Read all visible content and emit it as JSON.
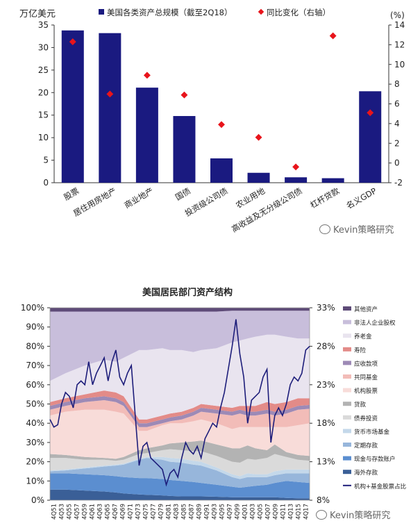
{
  "chart_data": [
    {
      "type": "bar",
      "title": "",
      "ylabel_left": "万亿美元",
      "ylabel_right": "(%)",
      "legend": [
        "美国各类资产总规模（截至2Q18）",
        "同比变化（右轴）"
      ],
      "categories": [
        "股票",
        "居住用房地产",
        "商业地产",
        "国债",
        "投资级公司债",
        "农业用地",
        "高收益及无分级公司债",
        "杠杆贷款",
        "名义GDP"
      ],
      "series": [
        {
          "name": "美国各类资产总规模（截至2Q18）",
          "axis": "left",
          "values": [
            33.8,
            33.2,
            21.1,
            14.8,
            5.4,
            2.2,
            1.2,
            1.0,
            20.3
          ]
        },
        {
          "name": "同比变化（右轴）",
          "axis": "right",
          "values": [
            12.3,
            7.0,
            8.9,
            6.9,
            3.9,
            2.6,
            -0.4,
            12.9,
            5.1
          ]
        }
      ],
      "ylim_left": [
        0,
        35
      ],
      "ylim_right": [
        -2,
        14
      ],
      "yticks_left": [
        "0",
        "5",
        "10",
        "15",
        "20",
        "25",
        "30",
        "35"
      ],
      "yticks_right": [
        "-2",
        "0",
        "2",
        "4",
        "6",
        "8",
        "10",
        "12",
        "14"
      ],
      "colors": {
        "bar": "#1a1a80",
        "marker": "#e8141b"
      }
    },
    {
      "type": "area",
      "title": "美国居民部门资产结构",
      "x_ticks": [
        "4Q51",
        "4Q53",
        "4Q55",
        "4Q57",
        "4Q59",
        "4Q61",
        "4Q63",
        "4Q65",
        "4Q67",
        "4Q69",
        "4Q71",
        "4Q73",
        "4Q75",
        "4Q77",
        "4Q79",
        "4Q81",
        "4Q83",
        "4Q85",
        "4Q87",
        "4Q89",
        "4Q91",
        "4Q93",
        "4Q95",
        "4Q97",
        "4Q99",
        "4Q01",
        "4Q03",
        "4Q05",
        "4Q07",
        "4Q09",
        "4Q11",
        "4Q13",
        "4Q15",
        "4Q17"
      ],
      "yticks_left": [
        "0%",
        "10%",
        "20%",
        "30%",
        "40%",
        "50%",
        "60%",
        "70%",
        "80%",
        "90%",
        "100%"
      ],
      "yticks_right": [
        "8%",
        "13%",
        "18%",
        "23%",
        "28%",
        "33%"
      ],
      "ylim_left": [
        0,
        100
      ],
      "ylim_right": [
        8,
        33
      ],
      "legend": [
        "其他资产",
        "非法人企业股权",
        "养老金",
        "寿险",
        "应收款项",
        "共同基金",
        "机构股票",
        "贷款",
        "债券投资",
        "货币市场基金",
        "定期存款",
        "现金与存款账户",
        "海外存款",
        "机构+基金股票占比"
      ],
      "stack_order": [
        "海外存款",
        "现金与存款账户",
        "定期存款",
        "货币市场基金",
        "债券投资",
        "贷款",
        "机构股票",
        "共同基金",
        "应收款项",
        "寿险",
        "养老金",
        "非法人企业股权",
        "其他资产"
      ],
      "colors": {
        "其他资产": "#5e4b78",
        "非法人企业股权": "#c8bedb",
        "养老金": "#e9e4ef",
        "寿险": "#e38b88",
        "应收款项": "#9d8ab6",
        "共同基金": "#f2bcb8",
        "机构股票": "#f8dcd9",
        "贷款": "#b3b3b3",
        "债券投资": "#dadada",
        "货币市场基金": "#c4d8ea",
        "定期存款": "#97b6db",
        "现金与存款账户": "#5b8ed0",
        "海外存款": "#3a5f97",
        "机构+基金股票占比": "#1d1d7a"
      },
      "anchor_years": [
        1951,
        1955,
        1960,
        1965,
        1968,
        1970,
        1974,
        1976,
        1980,
        1982,
        1985,
        1988,
        1990,
        1994,
        1998,
        2000,
        2002,
        2004,
        2007,
        2009,
        2012,
        2015,
        2018
      ],
      "cumulative_boundaries": {
        "海外存款": [
          5.5,
          5.5,
          5,
          4.5,
          4,
          3.5,
          3,
          2.8,
          2.5,
          2.2,
          2,
          2,
          2,
          1.8,
          1.5,
          1.5,
          1.5,
          1.5,
          1.5,
          1.5,
          1.2,
          1,
          1
        ],
        "现金与存款账户": [
          14,
          14,
          13.5,
          13,
          12.5,
          12,
          11.5,
          11.5,
          11,
          10.5,
          10,
          9.5,
          9,
          8,
          7,
          6.5,
          7,
          7.5,
          8,
          9,
          10,
          9.5,
          9
        ],
        "定期存款": [
          15,
          15.5,
          16.5,
          17.5,
          18,
          18.5,
          21,
          22,
          21,
          20,
          19.5,
          18.5,
          18,
          15.5,
          12,
          11,
          12,
          12,
          12,
          13,
          14,
          14,
          14
        ],
        "货币市场基金": [
          15.5,
          16,
          17,
          18,
          18.5,
          19,
          21.5,
          22.5,
          22.5,
          22,
          21.5,
          20.5,
          20,
          17,
          13.5,
          12.5,
          14,
          13.5,
          13.5,
          15,
          16,
          16,
          16
        ],
        "债券投资": [
          22,
          22,
          21,
          21,
          20.5,
          21,
          24,
          24.5,
          26,
          26.5,
          26,
          25.5,
          25.5,
          23,
          20,
          19.5,
          21.5,
          21,
          22,
          24,
          22.5,
          21,
          20.5
        ],
        "贷款": [
          24,
          23.5,
          22.5,
          22,
          21.5,
          22.5,
          26,
          27,
          28.5,
          29.5,
          30,
          30.5,
          31,
          29,
          27,
          27,
          28.5,
          27,
          26,
          29,
          25,
          23.5,
          23
        ],
        "机构股票": [
          44,
          46,
          47,
          47,
          46,
          45,
          36,
          36,
          39,
          40,
          40,
          41,
          42,
          40,
          37,
          38,
          38,
          38,
          38,
          38,
          38,
          39,
          40
        ],
        "共同基金": [
          47,
          49,
          51,
          52,
          51,
          49,
          38,
          38,
          40,
          41,
          42,
          44,
          46,
          45,
          44,
          45,
          44,
          44,
          45,
          44,
          45,
          47,
          47.5
        ],
        "应收款项": [
          49,
          51,
          53,
          54,
          53,
          51,
          40,
          40,
          42,
          43,
          44,
          46,
          48,
          47,
          46,
          47,
          46,
          46,
          47,
          46,
          47,
          49,
          49.5
        ],
        "寿险": [
          51,
          53,
          55,
          57,
          56,
          54,
          42,
          42,
          44,
          45,
          46,
          48,
          50,
          49,
          48,
          49,
          49,
          49,
          51,
          50,
          51,
          53,
          53
        ],
        "养老金": [
          62,
          66,
          70,
          73,
          72,
          74,
          78,
          78,
          79,
          78,
          78,
          77,
          78,
          79,
          82,
          83,
          84,
          85,
          86,
          86,
          85,
          84,
          84
        ],
        "非法人企业股权": [
          98,
          98,
          98,
          98,
          98,
          98,
          98,
          98,
          98,
          98,
          98,
          98,
          98,
          98,
          98.5,
          98.5,
          98.5,
          98.5,
          98.5,
          98.5,
          98.5,
          98.5,
          98.5
        ],
        "其他资产": [
          100,
          100,
          100,
          100,
          100,
          100,
          100,
          100,
          100,
          100,
          100,
          100,
          100,
          100,
          100,
          100,
          100,
          100,
          100,
          100,
          100,
          100,
          100
        ]
      },
      "line_series": {
        "name": "机构+基金股票占比",
        "axis": "right",
        "points": [
          [
            1951,
            18.5
          ],
          [
            1952,
            17.5
          ],
          [
            1953,
            17.8
          ],
          [
            1954,
            20.5
          ],
          [
            1955,
            22
          ],
          [
            1956,
            21.5
          ],
          [
            1957,
            20
          ],
          [
            1958,
            23
          ],
          [
            1959,
            23.5
          ],
          [
            1960,
            23
          ],
          [
            1961,
            26
          ],
          [
            1962,
            23
          ],
          [
            1963,
            24.5
          ],
          [
            1964,
            25.5
          ],
          [
            1965,
            26.5
          ],
          [
            1966,
            23.5
          ],
          [
            1967,
            26
          ],
          [
            1968,
            27.5
          ],
          [
            1969,
            24
          ],
          [
            1970,
            23
          ],
          [
            1971,
            24.5
          ],
          [
            1972,
            25.5
          ],
          [
            1973,
            19
          ],
          [
            1974,
            12.5
          ],
          [
            1975,
            15
          ],
          [
            1976,
            15.5
          ],
          [
            1977,
            13.5
          ],
          [
            1978,
            13
          ],
          [
            1979,
            12.5
          ],
          [
            1980,
            12
          ],
          [
            1981,
            10
          ],
          [
            1982,
            11.5
          ],
          [
            1983,
            12
          ],
          [
            1984,
            11
          ],
          [
            1985,
            13.5
          ],
          [
            1986,
            15.5
          ],
          [
            1987,
            14.5
          ],
          [
            1988,
            14
          ],
          [
            1989,
            15
          ],
          [
            1990,
            13.5
          ],
          [
            1991,
            16
          ],
          [
            1992,
            17
          ],
          [
            1993,
            18
          ],
          [
            1994,
            17.5
          ],
          [
            1995,
            20
          ],
          [
            1996,
            22
          ],
          [
            1997,
            25
          ],
          [
            1998,
            28
          ],
          [
            1999,
            31.5
          ],
          [
            2000,
            27
          ],
          [
            2001,
            24
          ],
          [
            2002,
            18
          ],
          [
            2003,
            21
          ],
          [
            2004,
            21.5
          ],
          [
            2005,
            22
          ],
          [
            2006,
            24
          ],
          [
            2007,
            25
          ],
          [
            2008,
            15.5
          ],
          [
            2009,
            19
          ],
          [
            2010,
            20
          ],
          [
            2011,
            19
          ],
          [
            2012,
            20.5
          ],
          [
            2013,
            23
          ],
          [
            2014,
            24
          ],
          [
            2015,
            23.5
          ],
          [
            2016,
            24.5
          ],
          [
            2017,
            27.5
          ],
          [
            2018,
            28
          ]
        ]
      }
    }
  ],
  "watermark": "Kevin策略研究"
}
